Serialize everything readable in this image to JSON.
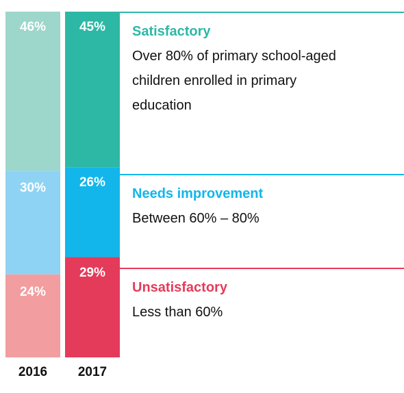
{
  "chart_data": {
    "type": "bar",
    "stacked": true,
    "normalized": true,
    "categories": [
      "2016",
      "2017"
    ],
    "series": [
      {
        "name": "Satisfactory",
        "values": [
          46,
          45
        ],
        "labels": [
          "46%",
          "45%"
        ],
        "colors": [
          "#9dd6ca",
          "#2db8a6"
        ]
      },
      {
        "name": "Needs improvement",
        "values": [
          30,
          26
        ],
        "labels": [
          "30%",
          "26%"
        ],
        "colors": [
          "#8ed3f4",
          "#12b6eb"
        ]
      },
      {
        "name": "Unsatisfactory",
        "values": [
          24,
          29
        ],
        "labels": [
          "24%",
          "29%"
        ],
        "colors": [
          "#f29d9f",
          "#e43b5a"
        ]
      }
    ]
  },
  "legend": [
    {
      "title": "Satisfactory",
      "description": "Over 80% of primary school-aged children enrolled in primary education",
      "color": "#2db8a6"
    },
    {
      "title": "Needs improvement",
      "description": "Between 60% – 80%",
      "color": "#12b6eb"
    },
    {
      "title": "Unsatisfactory",
      "description": "Less than 60%",
      "color": "#e43b5a"
    }
  ]
}
